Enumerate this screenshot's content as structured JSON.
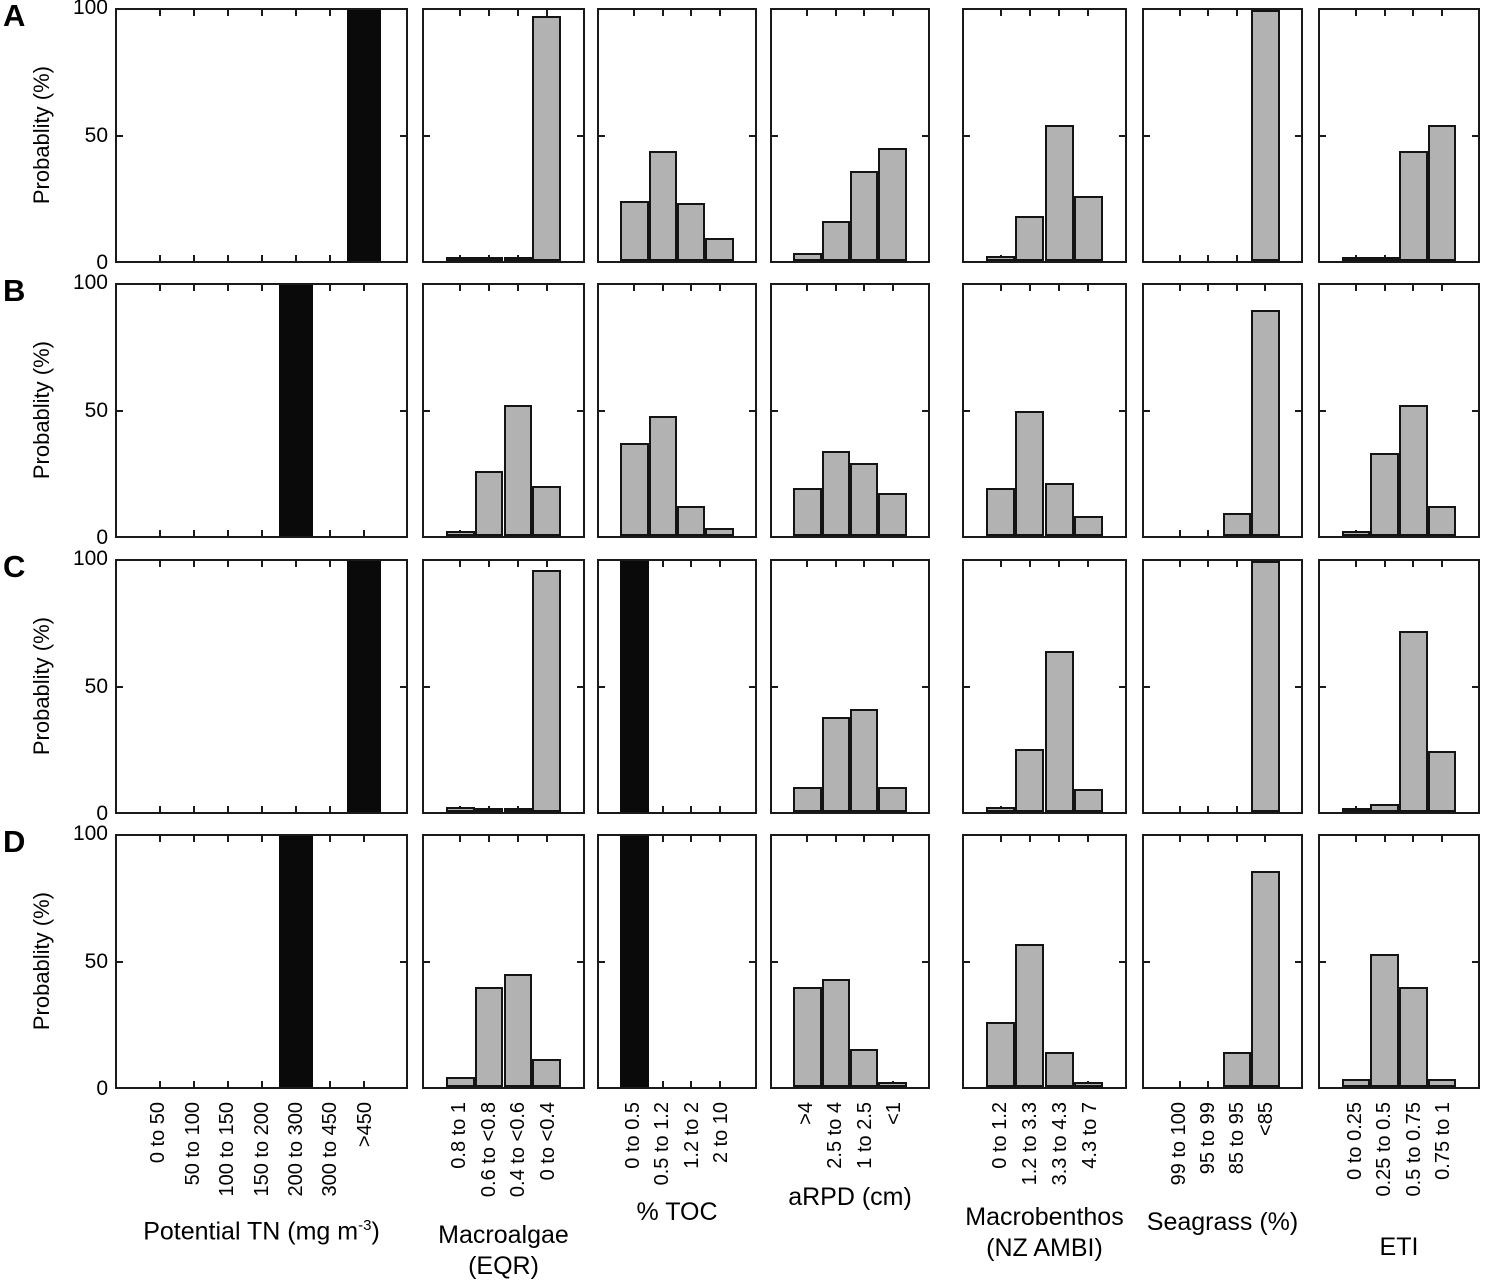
{
  "colors": {
    "bar_fill": "#b2b2b2",
    "bar_black": "#0a0a0a",
    "axis": "#1a1a1a",
    "text": "#000000",
    "background": "#ffffff"
  },
  "row_labels": [
    "A",
    "B",
    "C",
    "D"
  ],
  "chart_data": {
    "type": "bar",
    "ylabel": "Probablity (%)",
    "ylim": [
      0,
      100
    ],
    "grid": false,
    "yticks": [
      {
        "value": 100,
        "label": "100"
      },
      {
        "value": 50,
        "label": "50"
      },
      {
        "value": 0,
        "label": "0"
      }
    ],
    "rows": [
      "A",
      "B",
      "C",
      "D"
    ],
    "columns": [
      {
        "key": "potential-tn",
        "title": "Potential TN (mg m^-3)",
        "title_parts": {
          "pre": "Potential TN (mg m",
          "sup": "-3",
          "post": ")"
        },
        "title_line2": "",
        "categories": [
          "0 to 50",
          "50 to 100",
          "100 to 150",
          "150 to 200",
          "200 to 300",
          "300 to 450",
          ">450"
        ],
        "series": [
          {
            "row": "A",
            "values": [
              0,
              0,
              0,
              0,
              0,
              0,
              100
            ],
            "black": [
              6
            ]
          },
          {
            "row": "B",
            "values": [
              0,
              0,
              0,
              0,
              100,
              0,
              0
            ],
            "black": [
              4
            ]
          },
          {
            "row": "C",
            "values": [
              0,
              0,
              0,
              0,
              0,
              0,
              100
            ],
            "black": [
              6
            ]
          },
          {
            "row": "D",
            "values": [
              0,
              0,
              0,
              0,
              100,
              0,
              0
            ],
            "black": [
              4
            ]
          }
        ]
      },
      {
        "key": "macroalgae-eqr",
        "title": "Macroalgae (EQR)",
        "title_parts": {
          "pre": "Macroalgae",
          "sup": "",
          "post": ""
        },
        "title_line2": "(EQR)",
        "categories": [
          "0.8 to 1",
          "0.6 to <0.8",
          "0.4 to <0.6",
          "0 to <0.4"
        ],
        "series": [
          {
            "row": "A",
            "values": [
              0.5,
              0.5,
              1.5,
              97.5
            ],
            "black": []
          },
          {
            "row": "B",
            "values": [
              2,
              26,
              52,
              20
            ],
            "black": []
          },
          {
            "row": "C",
            "values": [
              2,
              0.5,
              1,
              96.5
            ],
            "black": []
          },
          {
            "row": "D",
            "values": [
              4,
              40,
              45,
              11
            ],
            "black": []
          }
        ]
      },
      {
        "key": "pct-toc",
        "title": "% TOC",
        "title_parts": {
          "pre": "% TOC",
          "sup": "",
          "post": ""
        },
        "title_line2": "",
        "categories": [
          "0 to 0.5",
          "0.5 to 1.2",
          "1.2 to 2",
          "2 to 10"
        ],
        "series": [
          {
            "row": "A",
            "values": [
              24,
              44,
              23,
              9
            ],
            "black": []
          },
          {
            "row": "B",
            "values": [
              37,
              48,
              12,
              3
            ],
            "black": []
          },
          {
            "row": "C",
            "values": [
              100,
              0,
              0,
              0
            ],
            "black": [
              0
            ]
          },
          {
            "row": "D",
            "values": [
              100,
              0,
              0,
              0
            ],
            "black": [
              0
            ]
          }
        ]
      },
      {
        "key": "arpd-cm",
        "title": "aRPD (cm)",
        "title_parts": {
          "pre": "aRPD (cm)",
          "sup": "",
          "post": ""
        },
        "title_line2": "",
        "categories": [
          ">4",
          "2.5 to 4",
          "1 to 2.5",
          "<1"
        ],
        "series": [
          {
            "row": "A",
            "values": [
              3,
              16,
              36,
              45
            ],
            "black": []
          },
          {
            "row": "B",
            "values": [
              19,
              34,
              29,
              17
            ],
            "black": []
          },
          {
            "row": "C",
            "values": [
              10,
              38,
              41,
              10
            ],
            "black": []
          },
          {
            "row": "D",
            "values": [
              40,
              43,
              15,
              2
            ],
            "black": []
          }
        ]
      },
      {
        "key": "macrobenthos-nz-ambi",
        "title": "Macrobenthos (NZ AMBI)",
        "title_parts": {
          "pre": "Macrobenthos",
          "sup": "",
          "post": ""
        },
        "title_line2": "(NZ AMBI)",
        "categories": [
          "0 to 1.2",
          "1.2 to 3.3",
          "3.3 to 4.3",
          "4.3 to 7"
        ],
        "series": [
          {
            "row": "A",
            "values": [
              2,
              18,
              54,
              26
            ],
            "black": []
          },
          {
            "row": "B",
            "values": [
              19,
              50,
              21,
              8
            ],
            "black": []
          },
          {
            "row": "C",
            "values": [
              2,
              25,
              64,
              9
            ],
            "black": []
          },
          {
            "row": "D",
            "values": [
              26,
              57,
              14,
              2
            ],
            "black": []
          }
        ]
      },
      {
        "key": "seagrass-pct",
        "title": "Seagrass (%)",
        "title_parts": {
          "pre": "Seagrass (%)",
          "sup": "",
          "post": ""
        },
        "title_line2": "",
        "categories": [
          "99 to 100",
          "95 to 99",
          "85 to 95",
          "<85"
        ],
        "series": [
          {
            "row": "A",
            "values": [
              0,
              0,
              0,
              100
            ],
            "black": []
          },
          {
            "row": "B",
            "values": [
              0,
              0,
              9,
              90
            ],
            "black": []
          },
          {
            "row": "C",
            "values": [
              0,
              0,
              0,
              100
            ],
            "black": []
          },
          {
            "row": "D",
            "values": [
              0,
              0,
              14,
              86
            ],
            "black": []
          }
        ]
      },
      {
        "key": "eti",
        "title": "ETI",
        "title_parts": {
          "pre": "ETI",
          "sup": "",
          "post": ""
        },
        "title_line2": "",
        "categories": [
          "0 to 0.25",
          "0.25 to 0.5",
          "0.5 to 0.75",
          "0.75 to 1"
        ],
        "series": [
          {
            "row": "A",
            "values": [
              0.5,
              1.5,
              44,
              54
            ],
            "black": []
          },
          {
            "row": "B",
            "values": [
              2,
              33,
              52,
              12
            ],
            "black": []
          },
          {
            "row": "C",
            "values": [
              0.5,
              3,
              72,
              24.5
            ],
            "black": []
          },
          {
            "row": "D",
            "values": [
              3,
              53,
              40,
              3
            ],
            "black": []
          }
        ]
      }
    ]
  }
}
